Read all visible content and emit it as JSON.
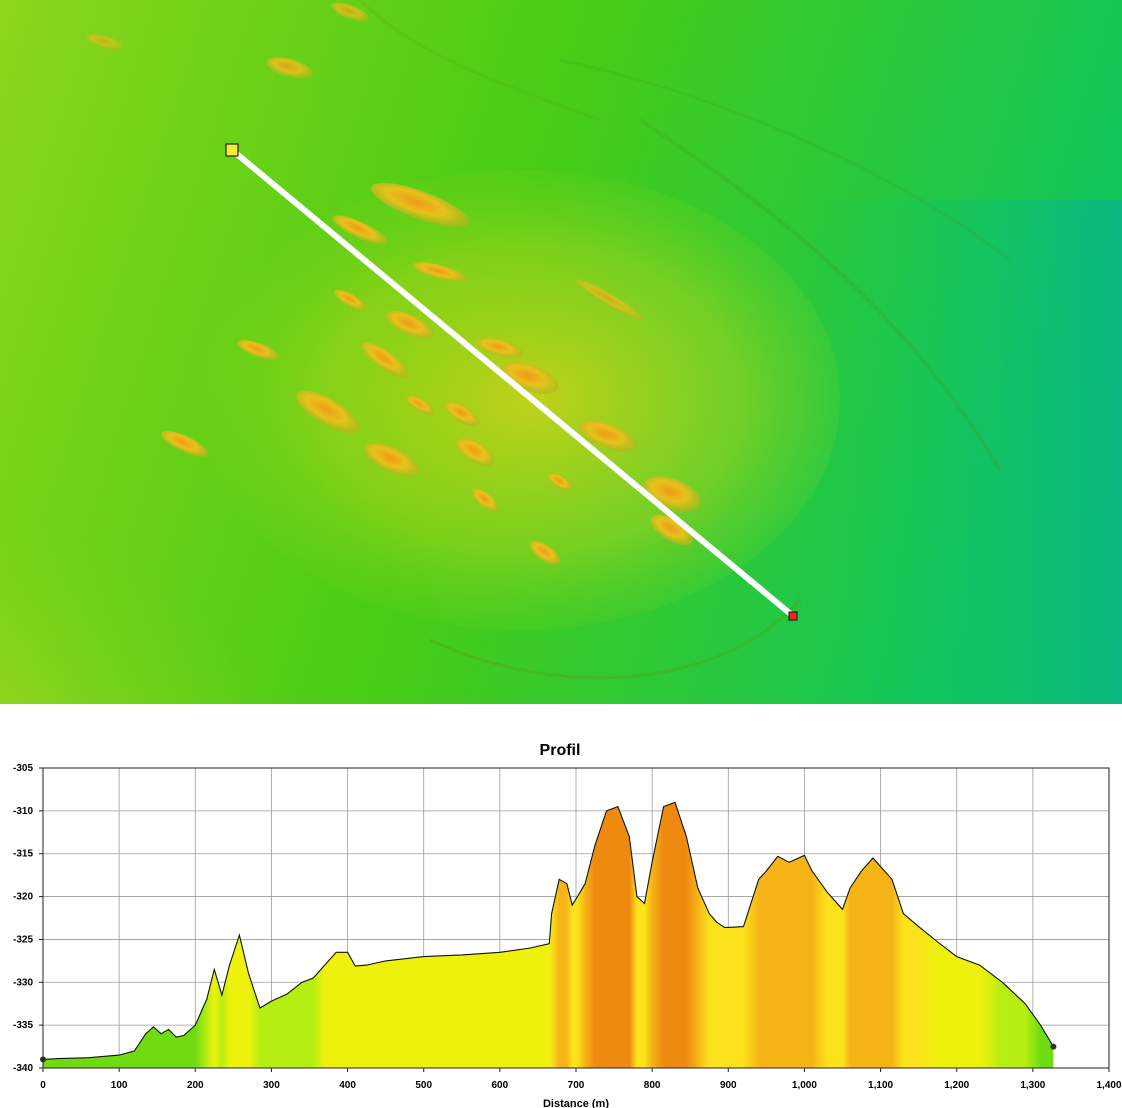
{
  "chart_data": {
    "type": "area",
    "title": "Profil",
    "xlabel": "Distance (m)",
    "ylabel": "",
    "xlim": [
      0,
      1400
    ],
    "ylim": [
      -340,
      -305
    ],
    "grid": true,
    "x_ticks": [
      0,
      100,
      200,
      300,
      400,
      500,
      600,
      700,
      800,
      900,
      1000,
      1100,
      1200,
      1300,
      1400
    ],
    "x_tick_labels": [
      "0",
      "100",
      "200",
      "300",
      "400",
      "500",
      "600",
      "700",
      "800",
      "900",
      "1,000",
      "1,100",
      "1,200",
      "1,300",
      "1,400"
    ],
    "y_ticks": [
      -305,
      -310,
      -315,
      -320,
      -325,
      -330,
      -335,
      -340
    ],
    "y_tick_labels": [
      "-305",
      "-310",
      "-315",
      "-320",
      "-325",
      "-330",
      "-335",
      "-340"
    ],
    "series": [
      {
        "x": [
          0,
          20,
          60,
          100,
          120,
          135,
          145,
          155,
          165,
          175,
          185,
          200,
          215,
          225,
          235,
          245,
          258,
          270,
          285,
          300,
          320,
          340,
          355,
          370,
          385,
          400,
          410,
          425,
          450,
          500,
          550,
          600,
          640,
          665,
          668,
          678,
          688,
          695,
          702,
          712,
          725,
          740,
          755,
          770,
          780,
          790,
          800,
          815,
          830,
          845,
          860,
          875,
          885,
          895,
          900,
          920,
          940,
          950,
          965,
          980,
          1000,
          1010,
          1030,
          1050,
          1060,
          1075,
          1090,
          1100,
          1115,
          1130,
          1150,
          1175,
          1200,
          1230,
          1260,
          1290,
          1310,
          1327
        ],
        "y": [
          -339,
          -338.9,
          -338.8,
          -338.5,
          -338,
          -336,
          -335.2,
          -336,
          -335.5,
          -336.4,
          -336.2,
          -335,
          -332,
          -328.5,
          -331.5,
          -328,
          -324.5,
          -329,
          -333,
          -332.2,
          -331.4,
          -330,
          -329.5,
          -328,
          -326.5,
          -326.5,
          -328.1,
          -328,
          -327.5,
          -327,
          -326.8,
          -326.5,
          -326,
          -325.5,
          -322,
          -318,
          -318.5,
          -321,
          -320,
          -318.5,
          -314,
          -310,
          -309.5,
          -313,
          -320,
          -320.8,
          -316,
          -309.5,
          -309,
          -313,
          -319,
          -322,
          -323,
          -323.6,
          -323.6,
          -323.5,
          -318,
          -317,
          -315.3,
          -316,
          -315.2,
          -317,
          -319.5,
          -321.5,
          -319,
          -317,
          -315.5,
          -316.5,
          -318,
          -322,
          -323.5,
          -325.3,
          -327,
          -328,
          -330,
          -332.5,
          -335,
          -337.5
        ]
      }
    ],
    "fill_colors": [
      "#6fdc12",
      "#b6ee12",
      "#eef10c",
      "#fbe21a",
      "#f6b417",
      "#ee8a10"
    ],
    "line_color": "#111111",
    "endpoint_markers": true
  },
  "map": {
    "profile_line_color": "#ffffff",
    "start_marker_color": "#f4ee3a",
    "end_marker_color": "#ff2020"
  }
}
